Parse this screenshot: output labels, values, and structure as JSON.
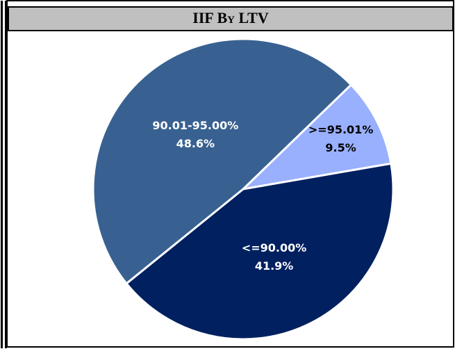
{
  "chart_data": {
    "type": "pie",
    "title": "IIF By LTV",
    "categories": [
      ">=95.01%",
      "<=90.00%",
      "90.01-95.00%"
    ],
    "values": [
      9.5,
      41.9,
      48.6
    ],
    "value_labels": [
      "9.5%",
      "41.9%",
      "48.6%"
    ],
    "colors": [
      "#99b0ff",
      "#002060",
      "#386191"
    ],
    "label_colors": [
      "#000000",
      "#ffffff",
      "#ffffff"
    ]
  }
}
